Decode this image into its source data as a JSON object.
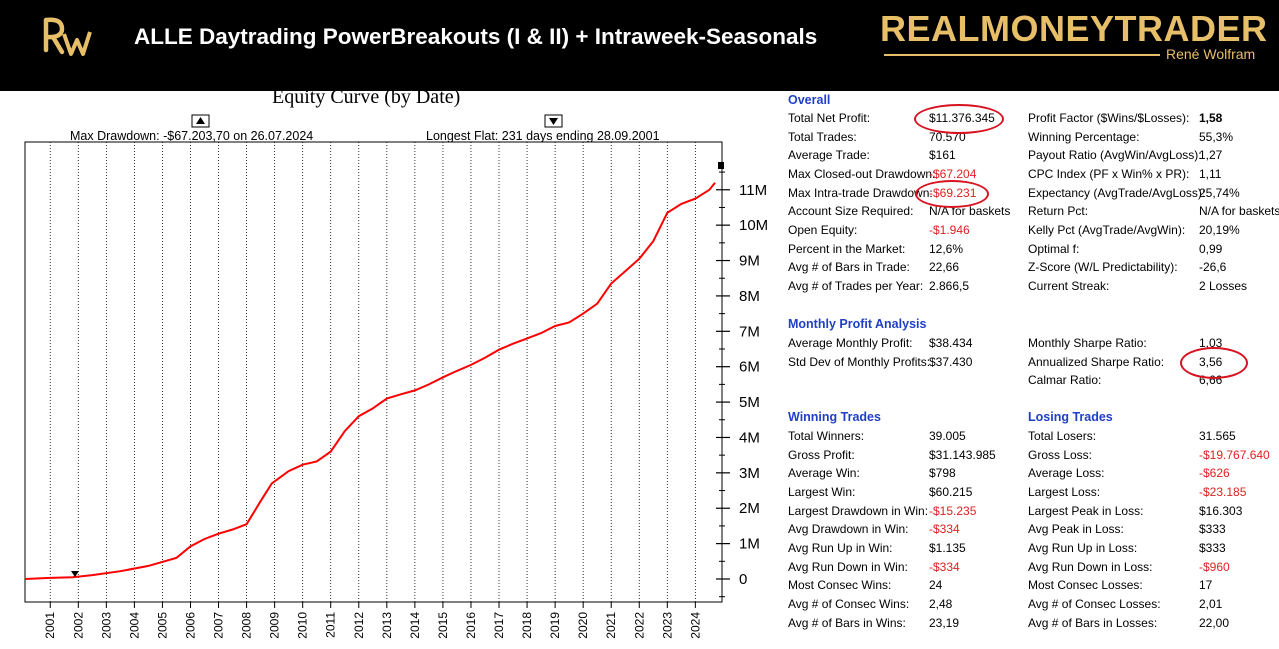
{
  "header": {
    "logo_text": "RW",
    "title": "ALLE Daytrading PowerBreakouts (I & II) + Intraweek-Seasonals",
    "brand": "REALMONEYTRADER",
    "brand_sub": "René Wolfram"
  },
  "chart_data": {
    "type": "line",
    "title": "Equity Curve (by Date)",
    "annotations": {
      "max_drawdown": "Max Drawdown: -$67.203,70 on 26.07.2024",
      "longest_flat": "Longest Flat: 231 days ending 28.09.2001"
    },
    "x_tick_labels": [
      "2001",
      "2002",
      "2003",
      "2004",
      "2005",
      "2006",
      "2007",
      "2008",
      "2009",
      "2010",
      "2011",
      "2012",
      "2013",
      "2014",
      "2015",
      "2016",
      "2017",
      "2018",
      "2019",
      "2020",
      "2021",
      "2022",
      "2023",
      "2024"
    ],
    "y_tick_labels": [
      {
        "value": 0,
        "label": "0"
      },
      {
        "value": 1000000,
        "label": "1M"
      },
      {
        "value": 2000000,
        "label": "2M"
      },
      {
        "value": 3000000,
        "label": "3M"
      },
      {
        "value": 4000000,
        "label": "4M"
      },
      {
        "value": 5000000,
        "label": "5M"
      },
      {
        "value": 6000000,
        "label": "6M"
      },
      {
        "value": 7000000,
        "label": "7M"
      },
      {
        "value": 8000000,
        "label": "8M"
      },
      {
        "value": 9000000,
        "label": "9M"
      },
      {
        "value": 10000000,
        "label": "10M"
      },
      {
        "value": 11000000,
        "label": "11M"
      }
    ],
    "ylim": [
      -650000,
      12350000
    ],
    "xlim": [
      2000.1,
      2024.95
    ],
    "grid": true,
    "series": [
      {
        "color": "#ff0000",
        "x": [
          2000.1,
          2001.0,
          2001.8,
          2002.5,
          2003.5,
          2004.5,
          2005.5,
          2006.0,
          2006.5,
          2007.0,
          2007.5,
          2008.0,
          2008.5,
          2008.9,
          2009.5,
          2010.0,
          2010.5,
          2011.0,
          2011.5,
          2012.0,
          2012.5,
          2013.0,
          2013.5,
          2014.0,
          2014.5,
          2015.0,
          2015.5,
          2016.0,
          2016.5,
          2017.0,
          2017.5,
          2018.0,
          2018.5,
          2019.0,
          2019.5,
          2020.0,
          2020.5,
          2021.0,
          2021.5,
          2022.0,
          2022.5,
          2023.0,
          2023.5,
          2024.0,
          2024.5,
          2024.7
        ],
        "y": [
          0,
          30000,
          50000,
          110000,
          220000,
          370000,
          600000,
          920000,
          1130000,
          1280000,
          1400000,
          1550000,
          2200000,
          2700000,
          3050000,
          3230000,
          3320000,
          3600000,
          4180000,
          4600000,
          4820000,
          5100000,
          5220000,
          5330000,
          5500000,
          5700000,
          5880000,
          6050000,
          6250000,
          6480000,
          6650000,
          6800000,
          6950000,
          7150000,
          7250000,
          7500000,
          7780000,
          8350000,
          8700000,
          9050000,
          9550000,
          10350000,
          10600000,
          10750000,
          11000000,
          11200000
        ]
      }
    ]
  },
  "stats": {
    "overall": {
      "title": "Overall",
      "left": [
        {
          "label": "Total Net Profit:",
          "value": "$11.376.345"
        },
        {
          "label": "Total Trades:",
          "value": "70.570"
        },
        {
          "label": "Average Trade:",
          "value": "$161"
        },
        {
          "label": "Max Closed-out Drawdown:",
          "value": "-$67.204",
          "neg": true
        },
        {
          "label": "Max Intra-trade Drawdown:",
          "value": "-$69.231",
          "neg": true
        },
        {
          "label": "Account Size Required:",
          "value": "N/A for baskets"
        },
        {
          "label": "Open Equity:",
          "value": "-$1.946",
          "neg": true
        },
        {
          "label": "Percent in the Market:",
          "value": "12,6%"
        },
        {
          "label": "Avg # of Bars in Trade:",
          "value": "22,66"
        },
        {
          "label": "Avg # of Trades per Year:",
          "value": "2.866,5"
        }
      ],
      "right": [
        {
          "label": "Profit Factor ($Wins/$Losses):",
          "value": "1,58",
          "bold": true
        },
        {
          "label": "Winning Percentage:",
          "value": "55,3%"
        },
        {
          "label": "Payout Ratio (AvgWin/AvgLoss):",
          "value": "1,27"
        },
        {
          "label": "CPC Index (PF x Win% x PR):",
          "value": "1,11"
        },
        {
          "label": "Expectancy (AvgTrade/AvgLoss):",
          "value": "25,74%"
        },
        {
          "label": "Return Pct:",
          "value": "N/A for baskets"
        },
        {
          "label": "Kelly Pct (AvgTrade/AvgWin):",
          "value": "20,19%"
        },
        {
          "label": "Optimal f:",
          "value": "0,99"
        },
        {
          "label": "Z-Score (W/L Predictability):",
          "value": "-26,6"
        },
        {
          "label": "Current Streak:",
          "value": "2 Losses"
        }
      ]
    },
    "monthly": {
      "title": "Monthly Profit Analysis",
      "left": [
        {
          "label": "Average Monthly Profit:",
          "value": "$38.434"
        },
        {
          "label": "Std Dev of Monthly Profits:",
          "value": "$37.430"
        }
      ],
      "right": [
        {
          "label": "Monthly Sharpe Ratio:",
          "value": "1,03"
        },
        {
          "label": "Annualized Sharpe Ratio:",
          "value": "3,56"
        },
        {
          "label": "Calmar Ratio:",
          "value": "6,66"
        }
      ]
    },
    "winning": {
      "title": "Winning Trades",
      "rows": [
        {
          "label": "Total Winners:",
          "value": "39.005"
        },
        {
          "label": "Gross Profit:",
          "value": "$31.143.985"
        },
        {
          "label": "Average Win:",
          "value": "$798"
        },
        {
          "label": "Largest Win:",
          "value": "$60.215"
        },
        {
          "label": "Largest Drawdown in Win:",
          "value": "-$15.235",
          "neg": true
        },
        {
          "label": "Avg Drawdown in Win:",
          "value": "-$334",
          "neg": true
        },
        {
          "label": "Avg Run Up in Win:",
          "value": "$1.135"
        },
        {
          "label": "Avg Run Down in Win:",
          "value": "-$334",
          "neg": true
        },
        {
          "label": "Most Consec Wins:",
          "value": "24"
        },
        {
          "label": "Avg # of Consec Wins:",
          "value": "2,48"
        },
        {
          "label": "Avg # of Bars in Wins:",
          "value": "23,19"
        }
      ]
    },
    "losing": {
      "title": "Losing Trades",
      "rows": [
        {
          "label": "Total Losers:",
          "value": "31.565"
        },
        {
          "label": "Gross Loss:",
          "value": "-$19.767.640",
          "neg": true
        },
        {
          "label": "Average Loss:",
          "value": "-$626",
          "neg": true
        },
        {
          "label": "Largest Loss:",
          "value": "-$23.185",
          "neg": true
        },
        {
          "label": "Largest Peak in Loss:",
          "value": "$16.303"
        },
        {
          "label": "Avg Peak in Loss:",
          "value": "$333"
        },
        {
          "label": "Avg Run Up in Loss:",
          "value": "$333"
        },
        {
          "label": "Avg Run Down in Loss:",
          "value": "-$960",
          "neg": true
        },
        {
          "label": "Most Consec Losses:",
          "value": "17"
        },
        {
          "label": "Avg # of Consec Losses:",
          "value": "2,01"
        },
        {
          "label": "Avg # of Bars in Losses:",
          "value": "22,00"
        }
      ]
    }
  }
}
